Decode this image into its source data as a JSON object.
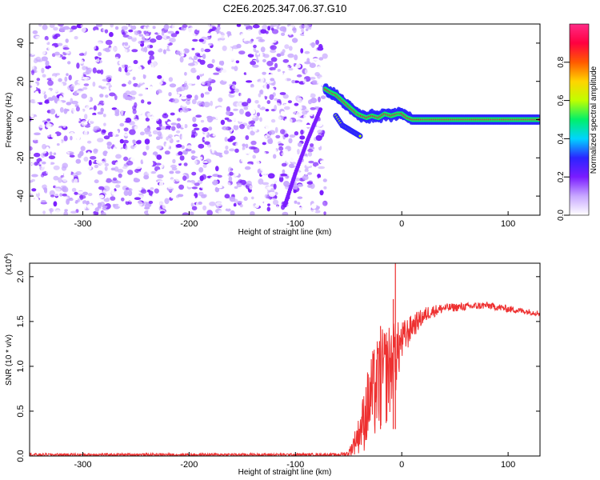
{
  "title": "C2E6.2025.347.06.37.G10",
  "chart_data": [
    {
      "type": "heatmap",
      "xlabel": "Height of straight line (km)",
      "ylabel": "Frequency (Hz)",
      "xlim": [
        -350,
        130
      ],
      "ylim": [
        -50,
        50
      ],
      "xticks": [
        -300,
        -200,
        -100,
        0,
        100
      ],
      "yticks": [
        -40,
        -20,
        0,
        20,
        40
      ],
      "grid": false,
      "noise_region_x": [
        -350,
        -72
      ],
      "signal_ridge": [
        {
          "x": -72,
          "y": 16
        },
        {
          "x": -66,
          "y": 14
        },
        {
          "x": -62,
          "y": 13
        },
        {
          "x": -58,
          "y": 11
        },
        {
          "x": -54,
          "y": 9
        },
        {
          "x": -50,
          "y": 7
        },
        {
          "x": -46,
          "y": 5
        },
        {
          "x": -42,
          "y": 3
        },
        {
          "x": -38,
          "y": 2
        },
        {
          "x": -33,
          "y": 1
        },
        {
          "x": -28,
          "y": 2
        },
        {
          "x": -22,
          "y": 1
        },
        {
          "x": -16,
          "y": 3
        },
        {
          "x": -10,
          "y": 2
        },
        {
          "x": -4,
          "y": 3
        },
        {
          "x": 0,
          "y": 3
        },
        {
          "x": 5,
          "y": 1
        },
        {
          "x": 10,
          "y": 0
        },
        {
          "x": 40,
          "y": 0
        },
        {
          "x": 80,
          "y": 0
        },
        {
          "x": 130,
          "y": 0
        }
      ],
      "secondary_ridge": [
        {
          "x": -62,
          "y": 2
        },
        {
          "x": -56,
          "y": -3
        },
        {
          "x": -50,
          "y": -5
        },
        {
          "x": -44,
          "y": -7
        },
        {
          "x": -38,
          "y": -9
        }
      ],
      "diagonal_streak": [
        {
          "x": -110,
          "y": -45
        },
        {
          "x": -100,
          "y": -28
        },
        {
          "x": -88,
          "y": -10
        },
        {
          "x": -76,
          "y": 6
        }
      ],
      "colorbar": {
        "label": "Normalized spectral amplitude",
        "range": [
          0,
          1
        ],
        "ticks": [
          "0.0",
          "0.2",
          "0.4",
          "0.6",
          "0.8"
        ],
        "colors": [
          "#ffffff",
          "#c8a8ff",
          "#7a1cff",
          "#2b24ff",
          "#00d4ff",
          "#00f06a",
          "#bfff00",
          "#ffd400",
          "#ff5a00",
          "#ff0040",
          "#ff2a86"
        ]
      }
    },
    {
      "type": "line",
      "xlabel": "Height of straight line (km)",
      "ylabel": "SNR (10 * v/v)",
      "yscale_label": "(x10",
      "yscale_exponent": "4",
      "xlim": [
        -350,
        130
      ],
      "ylim": [
        0,
        2.15
      ],
      "xticks": [
        -300,
        -200,
        -100,
        0,
        100
      ],
      "yticks": [
        "0.0",
        "0.5",
        "1.0",
        "1.5",
        "2.0"
      ],
      "grid": false,
      "color": "#ee3030",
      "envelope": [
        {
          "x": -350,
          "low": 0.0,
          "high": 0.03
        },
        {
          "x": -60,
          "low": 0.0,
          "high": 0.03
        },
        {
          "x": -50,
          "low": 0.0,
          "high": 0.06
        },
        {
          "x": -40,
          "low": 0.02,
          "high": 0.45
        },
        {
          "x": -30,
          "low": 0.05,
          "high": 1.1
        },
        {
          "x": -20,
          "low": 0.2,
          "high": 1.4
        },
        {
          "x": -10,
          "low": 0.4,
          "high": 1.5
        },
        {
          "x": 0,
          "low": 1.0,
          "high": 1.5
        },
        {
          "x": 10,
          "low": 1.3,
          "high": 1.58
        },
        {
          "x": 25,
          "low": 1.52,
          "high": 1.68
        },
        {
          "x": 40,
          "low": 1.6,
          "high": 1.7
        },
        {
          "x": 80,
          "low": 1.64,
          "high": 1.72
        },
        {
          "x": 100,
          "low": 1.6,
          "high": 1.68
        },
        {
          "x": 130,
          "low": 1.56,
          "high": 1.62
        }
      ],
      "spikes": [
        {
          "x": -6,
          "y": 2.15
        },
        {
          "x": -8,
          "y": 1.75
        },
        {
          "x": -20,
          "y": 1.45
        }
      ]
    }
  ]
}
